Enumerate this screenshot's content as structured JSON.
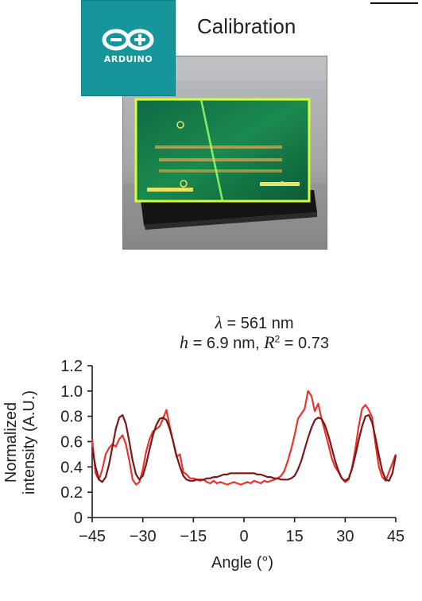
{
  "header": {
    "title": "Calibration",
    "logo_text": "ARDUINO"
  },
  "chart_title": {
    "line1_var": "λ",
    "line1_rest": " = 561 nm",
    "line2_var_h": "h",
    "line2_mid": " = 6.9 nm, ",
    "line2_var_r": "R",
    "line2_sup": "2",
    "line2_tail": " = 0.73"
  },
  "chart_data": {
    "type": "line",
    "xlabel": "Angle (°)",
    "ylabel_line1": "Normalized",
    "ylabel_line2": "intensity (A.U.)",
    "xlim": [
      -45,
      45
    ],
    "ylim": [
      0,
      1.2
    ],
    "xticks": [
      "−45",
      "−30",
      "−15",
      "0",
      "15",
      "30",
      "45"
    ],
    "yticks": [
      "0",
      "0.2",
      "0.4",
      "0.6",
      "0.8",
      "1.0",
      "1.2"
    ],
    "xtick_values": [
      -45,
      -30,
      -15,
      0,
      15,
      30,
      45
    ],
    "ytick_values": [
      0,
      0.2,
      0.4,
      0.6,
      0.8,
      1.0,
      1.2
    ],
    "series": [
      {
        "color": "#e8332e",
        "x": [
          -45,
          -44,
          -43,
          -42,
          -41,
          -40,
          -39,
          -38,
          -37,
          -36,
          -35,
          -34,
          -33,
          -32,
          -31,
          -30,
          -29,
          -28,
          -27,
          -26,
          -25,
          -24,
          -23,
          -22,
          -21,
          -20,
          -19,
          -18,
          -17,
          -16,
          -15,
          -14,
          -13,
          -12,
          -11,
          -10,
          -9,
          -8,
          -7,
          -6,
          -5,
          -4,
          -3,
          -2,
          -1,
          0,
          1,
          2,
          3,
          4,
          5,
          6,
          7,
          8,
          9,
          10,
          11,
          12,
          13,
          14,
          15,
          16,
          17,
          18,
          19,
          20,
          21,
          22,
          23,
          24,
          25,
          26,
          27,
          28,
          29,
          30,
          31,
          32,
          33,
          34,
          35,
          36,
          37,
          38,
          39,
          40,
          41,
          42,
          43,
          44,
          45
        ],
        "y": [
          0.62,
          0.35,
          0.3,
          0.38,
          0.5,
          0.55,
          0.58,
          0.56,
          0.62,
          0.65,
          0.58,
          0.45,
          0.3,
          0.26,
          0.28,
          0.38,
          0.52,
          0.62,
          0.68,
          0.7,
          0.72,
          0.78,
          0.85,
          0.72,
          0.6,
          0.48,
          0.5,
          0.36,
          0.34,
          0.31,
          0.31,
          0.3,
          0.29,
          0.3,
          0.28,
          0.27,
          0.29,
          0.27,
          0.28,
          0.27,
          0.26,
          0.27,
          0.28,
          0.27,
          0.26,
          0.27,
          0.28,
          0.27,
          0.29,
          0.28,
          0.27,
          0.29,
          0.28,
          0.29,
          0.3,
          0.31,
          0.33,
          0.37,
          0.45,
          0.54,
          0.65,
          0.78,
          0.82,
          0.86,
          1.0,
          0.96,
          0.84,
          0.9,
          0.78,
          0.68,
          0.58,
          0.47,
          0.4,
          0.36,
          0.31,
          0.28,
          0.3,
          0.39,
          0.54,
          0.72,
          0.86,
          0.89,
          0.85,
          0.79,
          0.58,
          0.4,
          0.32,
          0.29,
          0.36,
          0.43,
          0.5
        ]
      },
      {
        "color": "#7a1718",
        "x": [
          -45,
          -44,
          -43,
          -42,
          -41,
          -40,
          -39,
          -38,
          -37,
          -36,
          -35,
          -34,
          -33,
          -32,
          -31,
          -30,
          -29,
          -28,
          -27,
          -26,
          -25,
          -24,
          -23,
          -22,
          -21,
          -20,
          -19,
          -18,
          -17,
          -16,
          -15,
          -14,
          -13,
          -12,
          -11,
          -10,
          -9,
          -8,
          -7,
          -6,
          -5,
          -4,
          -3,
          -2,
          -1,
          0,
          1,
          2,
          3,
          4,
          5,
          6,
          7,
          8,
          9,
          10,
          11,
          12,
          13,
          14,
          15,
          16,
          17,
          18,
          19,
          20,
          21,
          22,
          23,
          24,
          25,
          26,
          27,
          28,
          29,
          30,
          31,
          32,
          33,
          34,
          35,
          36,
          37,
          38,
          39,
          40,
          41,
          42,
          43,
          44,
          45
        ],
        "y": [
          0.55,
          0.4,
          0.3,
          0.28,
          0.32,
          0.42,
          0.56,
          0.7,
          0.79,
          0.81,
          0.74,
          0.6,
          0.45,
          0.34,
          0.3,
          0.33,
          0.42,
          0.54,
          0.65,
          0.73,
          0.78,
          0.79,
          0.77,
          0.7,
          0.6,
          0.49,
          0.4,
          0.33,
          0.3,
          0.29,
          0.29,
          0.3,
          0.3,
          0.3,
          0.31,
          0.31,
          0.32,
          0.32,
          0.33,
          0.34,
          0.34,
          0.35,
          0.35,
          0.35,
          0.35,
          0.35,
          0.35,
          0.35,
          0.35,
          0.34,
          0.34,
          0.33,
          0.32,
          0.32,
          0.31,
          0.31,
          0.3,
          0.3,
          0.3,
          0.31,
          0.33,
          0.38,
          0.45,
          0.54,
          0.63,
          0.71,
          0.77,
          0.79,
          0.78,
          0.73,
          0.65,
          0.55,
          0.45,
          0.37,
          0.31,
          0.29,
          0.31,
          0.38,
          0.49,
          0.61,
          0.72,
          0.8,
          0.81,
          0.75,
          0.63,
          0.49,
          0.37,
          0.3,
          0.29,
          0.35,
          0.49
        ]
      }
    ]
  }
}
